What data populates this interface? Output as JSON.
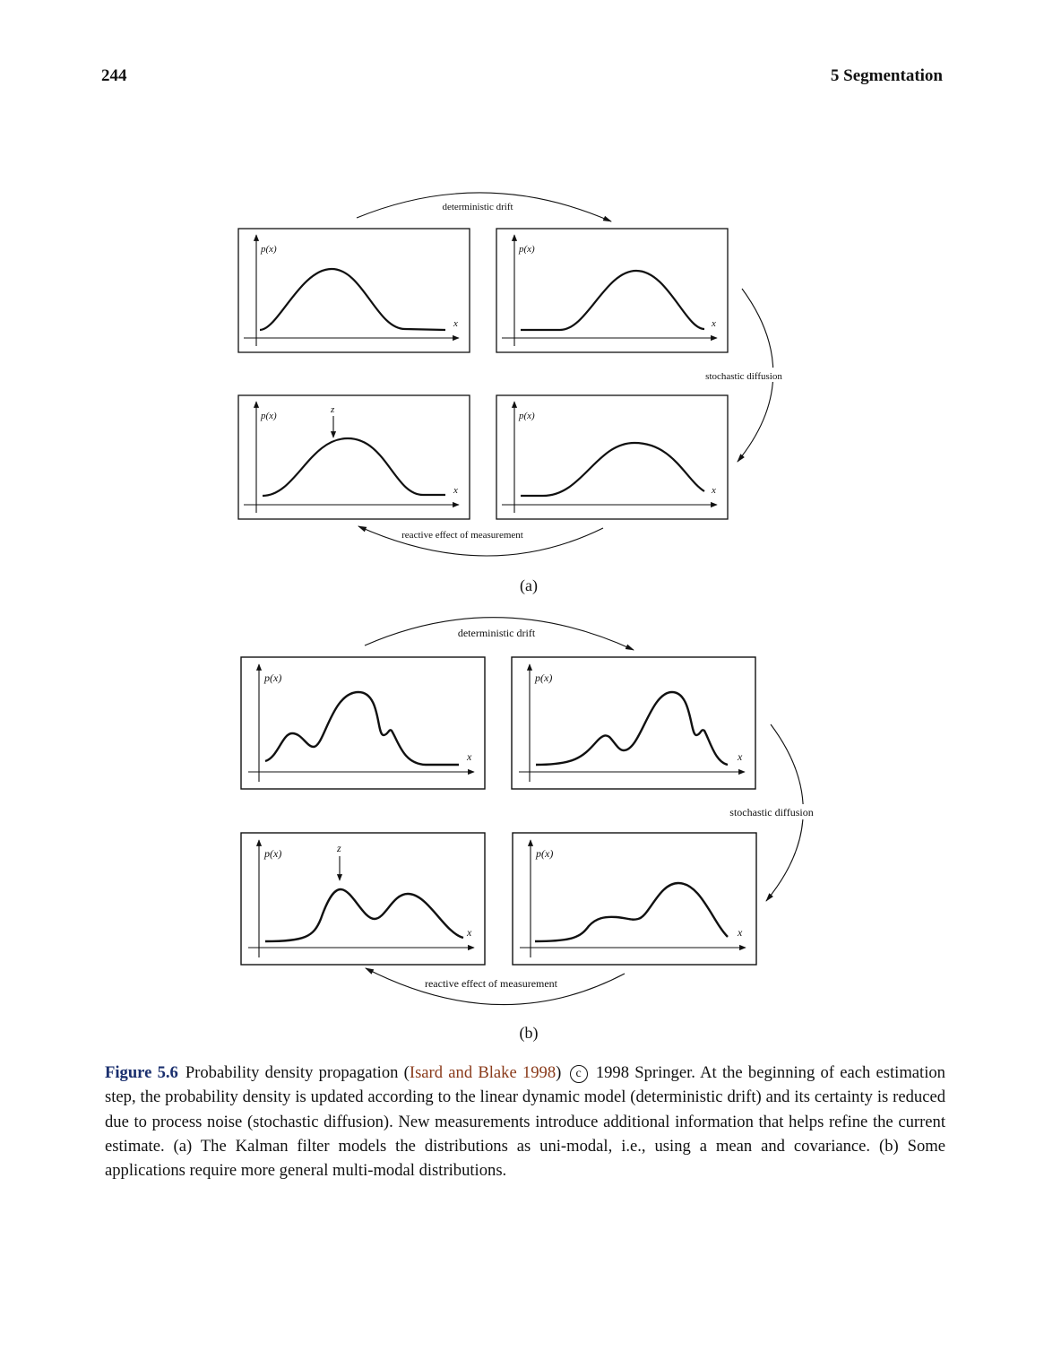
{
  "header": {
    "page_number": "244",
    "chapter": "5  Segmentation"
  },
  "figure": {
    "panels": [
      {
        "label": "(a)",
        "arrow_labels": {
          "drift": "deterministic drift",
          "diffusion": "stochastic diffusion",
          "measurement": "reactive effect of measurement"
        },
        "plots": [
          {
            "ylabel": "p(x)",
            "xlabel": "x",
            "measurement": ""
          },
          {
            "ylabel": "p(x)",
            "xlabel": "x",
            "measurement": ""
          },
          {
            "ylabel": "p(x)",
            "xlabel": "x",
            "measurement": "z"
          },
          {
            "ylabel": "p(x)",
            "xlabel": "x",
            "measurement": ""
          }
        ]
      },
      {
        "label": "(b)",
        "arrow_labels": {
          "drift": "deterministic drift",
          "diffusion": "stochastic diffusion",
          "measurement": "reactive effect of measurement"
        },
        "plots": [
          {
            "ylabel": "p(x)",
            "xlabel": "x",
            "measurement": ""
          },
          {
            "ylabel": "p(x)",
            "xlabel": "x",
            "measurement": ""
          },
          {
            "ylabel": "p(x)",
            "xlabel": "x",
            "measurement": "z"
          },
          {
            "ylabel": "p(x)",
            "xlabel": "x",
            "measurement": ""
          }
        ]
      }
    ]
  },
  "caption": {
    "label": "Figure 5.6",
    "text_before": "Probability density propagation (",
    "citation": "Isard and Blake 1998",
    "text_mid": ")",
    "copyright_symbol": "c",
    "text_after": "1998 Springer.  At the beginning of each estimation step, the probability density is updated according to the linear dynamic model (deterministic drift) and its certainty is reduced due to process noise (stochastic diffusion).  New measurements introduce additional information that helps refine the current estimate.  (a) The Kalman filter models the distributions as uni-modal, i.e., using a mean and covariance. (b) Some applications require more general multi-modal distributions."
  }
}
